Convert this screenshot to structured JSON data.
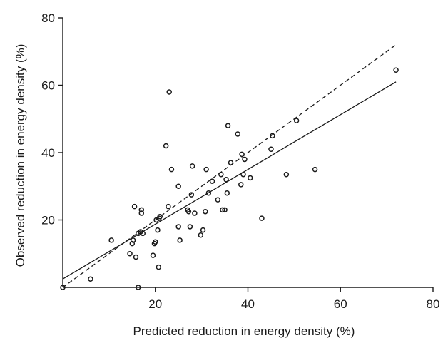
{
  "chart_data": {
    "type": "scatter",
    "xlabel": "Predicted reduction in energy density (%)",
    "ylabel": "Observed reduction in energy density (%)",
    "xlim": [
      0,
      80
    ],
    "ylim": [
      0,
      80
    ],
    "x_ticks": [
      20,
      40,
      60,
      80
    ],
    "y_ticks": [
      20,
      40,
      60,
      80
    ],
    "grid": false,
    "lines": [
      {
        "style": "solid",
        "x": [
          0,
          72
        ],
        "y": [
          2.5,
          61
        ]
      },
      {
        "style": "dashed",
        "x": [
          0,
          72
        ],
        "y": [
          0,
          72
        ]
      }
    ],
    "points": {
      "x": [
        0,
        6,
        10.5,
        14.5,
        15,
        15.2,
        15.5,
        15.8,
        16.3,
        16.3,
        16.8,
        17,
        17,
        17.3,
        19.5,
        19.8,
        20,
        20.2,
        20.5,
        20.7,
        20.8,
        21,
        22.3,
        22.8,
        23,
        23.5,
        25,
        25,
        25.3,
        27,
        27.2,
        27.5,
        27.8,
        28,
        28.5,
        29.8,
        30.3,
        30.8,
        31,
        31.5,
        32.3,
        33.5,
        34.2,
        34.5,
        35,
        35.3,
        35.5,
        35.7,
        36.3,
        37.8,
        38.5,
        38.7,
        39,
        39.3,
        40.5,
        43,
        45,
        45.3,
        48.3,
        50.5,
        54.5,
        72
      ],
      "y": [
        0,
        2.5,
        14,
        10,
        13,
        14,
        24,
        9,
        16,
        0,
        16.5,
        22,
        23,
        16,
        9.5,
        13,
        13.5,
        20,
        17,
        6,
        20.5,
        21,
        42,
        24,
        58,
        35,
        30,
        18,
        14,
        23,
        22.5,
        18,
        27.5,
        36,
        22,
        15.5,
        17,
        22.5,
        35,
        28,
        31.5,
        26,
        33.5,
        23,
        23,
        32,
        28,
        48,
        37,
        45.5,
        30.5,
        39.5,
        33.5,
        38,
        32.5,
        20.5,
        41,
        45,
        33.5,
        49.5,
        35,
        64.5
      ]
    }
  }
}
